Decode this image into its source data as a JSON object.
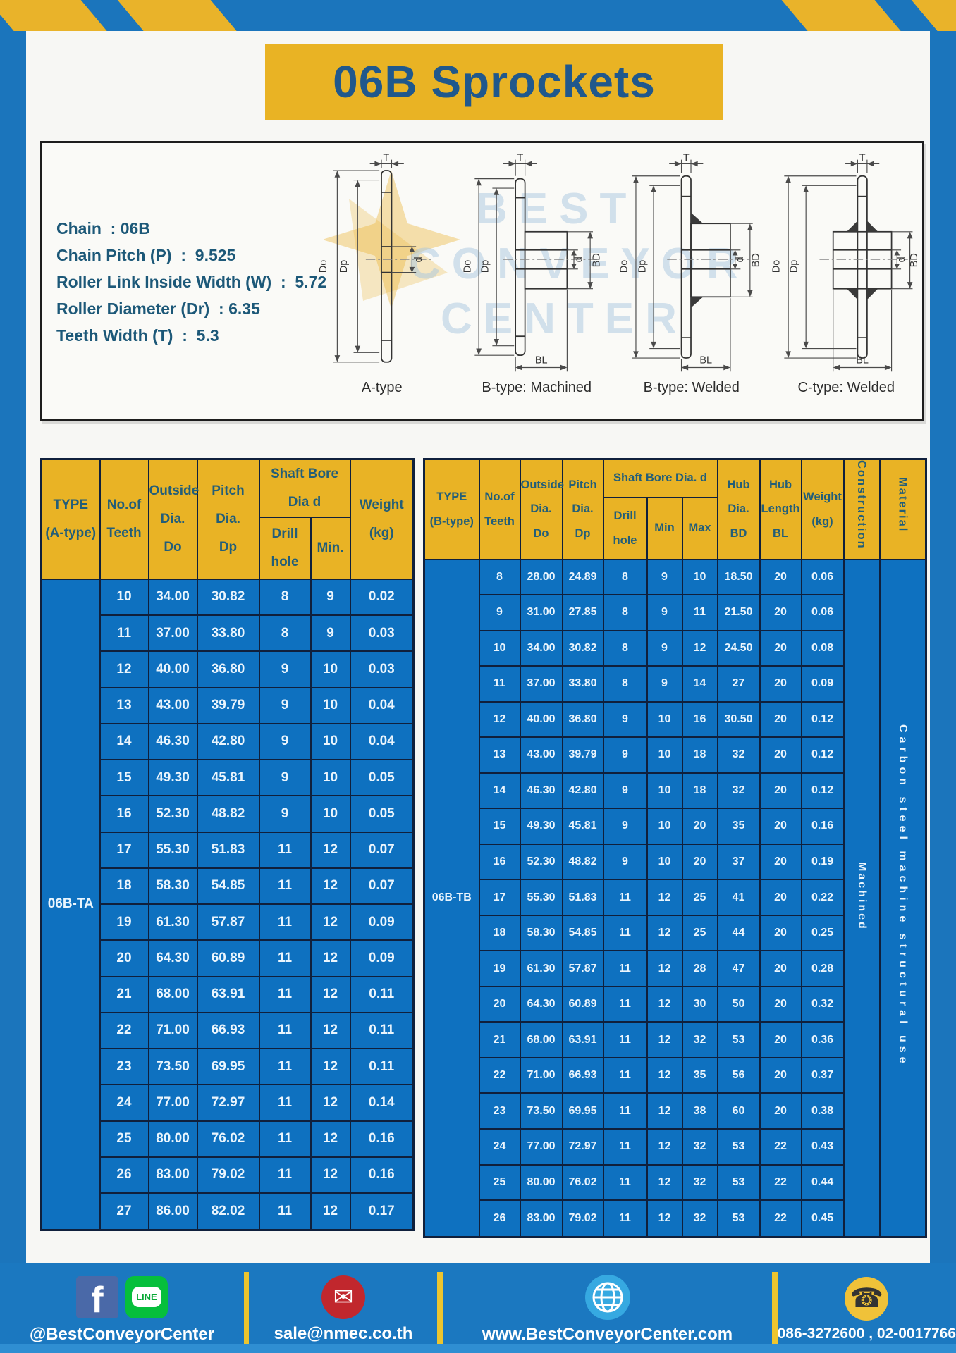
{
  "page": {
    "title": "06B Sprockets"
  },
  "specs": [
    "Chain  : 06B",
    "Chain Pitch (P)  :  9.525",
    "Roller Link Inside Width (W)  :  5.72",
    "Roller Diameter (Dr)  : 6.35",
    "Teeth Width (T)  :  5.3"
  ],
  "drawings": {
    "watermark": [
      "BEST",
      "CONVEYOR",
      "CENTER"
    ],
    "items": [
      {
        "label": "A-type"
      },
      {
        "label": "B-type: Machined"
      },
      {
        "label": "B-type: Welded"
      },
      {
        "label": "C-type: Welded"
      }
    ],
    "dim_labels": {
      "t": "T",
      "do": "Do",
      "dp": "Dp",
      "d": "d",
      "bd": "BD",
      "bl": "BL"
    }
  },
  "table_a": {
    "type_label": "06B-TA",
    "headers": {
      "type": "TYPE\n(A-type)",
      "teeth": "No.of\nTeeth",
      "outside": "Outside\nDia.\nDo",
      "pitch": "Pitch Dia.\nDp",
      "shaft_bore": "Shaft Bore Dia d",
      "drill": "Drill hole",
      "min": "Min.",
      "weight": "Weight\n(kg)"
    },
    "rows": [
      [
        "10",
        "34.00",
        "30.82",
        "8",
        "9",
        "0.02"
      ],
      [
        "11",
        "37.00",
        "33.80",
        "8",
        "9",
        "0.03"
      ],
      [
        "12",
        "40.00",
        "36.80",
        "9",
        "10",
        "0.03"
      ],
      [
        "13",
        "43.00",
        "39.79",
        "9",
        "10",
        "0.04"
      ],
      [
        "14",
        "46.30",
        "42.80",
        "9",
        "10",
        "0.04"
      ],
      [
        "15",
        "49.30",
        "45.81",
        "9",
        "10",
        "0.05"
      ],
      [
        "16",
        "52.30",
        "48.82",
        "9",
        "10",
        "0.05"
      ],
      [
        "17",
        "55.30",
        "51.83",
        "11",
        "12",
        "0.07"
      ],
      [
        "18",
        "58.30",
        "54.85",
        "11",
        "12",
        "0.07"
      ],
      [
        "19",
        "61.30",
        "57.87",
        "11",
        "12",
        "0.09"
      ],
      [
        "20",
        "64.30",
        "60.89",
        "11",
        "12",
        "0.09"
      ],
      [
        "21",
        "68.00",
        "63.91",
        "11",
        "12",
        "0.11"
      ],
      [
        "22",
        "71.00",
        "66.93",
        "11",
        "12",
        "0.11"
      ],
      [
        "23",
        "73.50",
        "69.95",
        "11",
        "12",
        "0.11"
      ],
      [
        "24",
        "77.00",
        "72.97",
        "11",
        "12",
        "0.14"
      ],
      [
        "25",
        "80.00",
        "76.02",
        "11",
        "12",
        "0.16"
      ],
      [
        "26",
        "83.00",
        "79.02",
        "11",
        "12",
        "0.16"
      ],
      [
        "27",
        "86.00",
        "82.02",
        "11",
        "12",
        "0.17"
      ]
    ]
  },
  "table_b": {
    "type_label": "06B-TB",
    "construction": "Machined",
    "material": "Carbon steel machine structural use",
    "headers": {
      "type": "TYPE\n(B-type)",
      "teeth": "No.of\nTeeth",
      "outside": "Outside\nDia.\nDo",
      "pitch": "Pitch\nDia.\nDp",
      "shaft_bore": "Shaft Bore Dia.  d",
      "drill": "Drill hole",
      "min": "Min",
      "max": "Max",
      "hub_dia": "Hub\nDia.\nBD",
      "hub_len": "Hub\nLength\nBL",
      "weight": "Weight\n(kg)",
      "construction": "Construction",
      "material": "Material"
    },
    "rows": [
      [
        "8",
        "28.00",
        "24.89",
        "8",
        "9",
        "10",
        "18.50",
        "20",
        "0.06"
      ],
      [
        "9",
        "31.00",
        "27.85",
        "8",
        "9",
        "11",
        "21.50",
        "20",
        "0.06"
      ],
      [
        "10",
        "34.00",
        "30.82",
        "8",
        "9",
        "12",
        "24.50",
        "20",
        "0.08"
      ],
      [
        "11",
        "37.00",
        "33.80",
        "8",
        "9",
        "14",
        "27",
        "20",
        "0.09"
      ],
      [
        "12",
        "40.00",
        "36.80",
        "9",
        "10",
        "16",
        "30.50",
        "20",
        "0.12"
      ],
      [
        "13",
        "43.00",
        "39.79",
        "9",
        "10",
        "18",
        "32",
        "20",
        "0.12"
      ],
      [
        "14",
        "46.30",
        "42.80",
        "9",
        "10",
        "18",
        "32",
        "20",
        "0.12"
      ],
      [
        "15",
        "49.30",
        "45.81",
        "9",
        "10",
        "20",
        "35",
        "20",
        "0.16"
      ],
      [
        "16",
        "52.30",
        "48.82",
        "9",
        "10",
        "20",
        "37",
        "20",
        "0.19"
      ],
      [
        "17",
        "55.30",
        "51.83",
        "11",
        "12",
        "25",
        "41",
        "20",
        "0.22"
      ],
      [
        "18",
        "58.30",
        "54.85",
        "11",
        "12",
        "25",
        "44",
        "20",
        "0.25"
      ],
      [
        "19",
        "61.30",
        "57.87",
        "11",
        "12",
        "28",
        "47",
        "20",
        "0.28"
      ],
      [
        "20",
        "64.30",
        "60.89",
        "11",
        "12",
        "30",
        "50",
        "20",
        "0.32"
      ],
      [
        "21",
        "68.00",
        "63.91",
        "11",
        "12",
        "32",
        "53",
        "20",
        "0.36"
      ],
      [
        "22",
        "71.00",
        "66.93",
        "11",
        "12",
        "35",
        "56",
        "20",
        "0.37"
      ],
      [
        "23",
        "73.50",
        "69.95",
        "11",
        "12",
        "38",
        "60",
        "20",
        "0.38"
      ],
      [
        "24",
        "77.00",
        "72.97",
        "11",
        "12",
        "32",
        "53",
        "22",
        "0.43"
      ],
      [
        "25",
        "80.00",
        "76.02",
        "11",
        "12",
        "32",
        "53",
        "22",
        "0.44"
      ],
      [
        "26",
        "83.00",
        "79.02",
        "11",
        "12",
        "32",
        "53",
        "22",
        "0.45"
      ]
    ]
  },
  "footer": {
    "social_handle": "@BestConveyorCenter",
    "email": "sale@nmec.co.th",
    "website": "www.BestConveyorCenter.com",
    "phones": "086-3272600 , 02-0017766",
    "icons": {
      "facebook": "f",
      "line": "LINE",
      "email": "✉",
      "phone": "☎"
    }
  },
  "colors": {
    "frame_blue": "#1b75bc",
    "table_blue": "#0e71c0",
    "header_yellow": "#e9b325",
    "header_text": "#235e78",
    "cell_text": "#eaf5fd",
    "border_dark": "#10203c",
    "facebook_blue": "#4a69a8",
    "line_green": "#06bf3c",
    "email_red": "#c1272d",
    "globe_blue": "#36a9e1",
    "phone_yellow": "#f0c239"
  }
}
